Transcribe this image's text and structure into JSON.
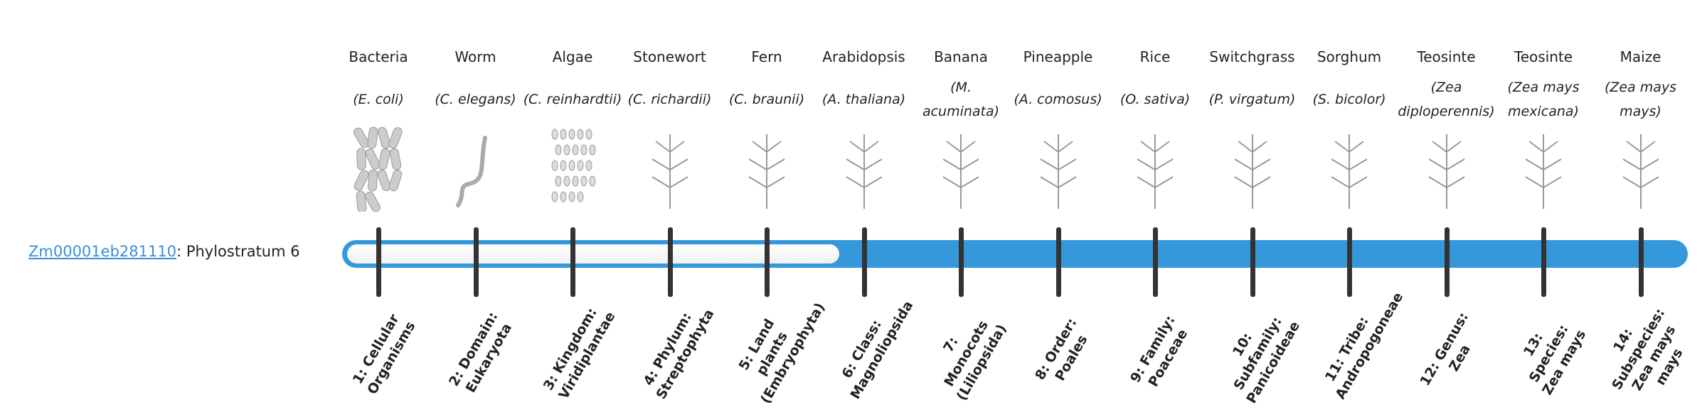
{
  "gene": {
    "id": "Zm00001eb281110",
    "suffix": ": Phylostratum 6",
    "phylostratum": 6,
    "total_strata": 14
  },
  "colors": {
    "bar": "#3498db",
    "tick": "#333333",
    "link": "#3a8fd9"
  },
  "organisms": [
    {
      "common": "Bacteria",
      "scientific": "(E. coli)",
      "icon": "bacteria-icon",
      "stratum": "1: Cellular Organisms"
    },
    {
      "common": "Worm",
      "scientific": "(C. elegans)",
      "icon": "worm-icon",
      "stratum": "2: Domain: Eukaryota"
    },
    {
      "common": "Algae",
      "scientific": "(C. reinhardtii)",
      "icon": "algae-icon",
      "stratum": "3: Kingdom: Viridiplantae"
    },
    {
      "common": "Stonewort",
      "scientific": "(C. richardii)",
      "icon": "stonewort-icon",
      "stratum": "4: Phylum: Streptophyta"
    },
    {
      "common": "Fern",
      "scientific": "(C. braunii)",
      "icon": "fern-icon",
      "stratum": "5: Land plants (Embryophyta)"
    },
    {
      "common": "Arabidopsis",
      "scientific": "(A. thaliana)",
      "icon": "arabidopsis-icon",
      "stratum": "6: Class: Magnoliopsida"
    },
    {
      "common": "Banana",
      "scientific": "(M. acuminata)",
      "icon": "banana-icon",
      "stratum": "7: Monocots (Liliopsida)"
    },
    {
      "common": "Pineapple",
      "scientific": "(A. comosus)",
      "icon": "pineapple-icon",
      "stratum": "8: Order: Poales"
    },
    {
      "common": "Rice",
      "scientific": "(O. sativa)",
      "icon": "rice-icon",
      "stratum": "9: Family: Poaceae"
    },
    {
      "common": "Switchgrass",
      "scientific": "(P. virgatum)",
      "icon": "switchgrass-icon",
      "stratum": "10: Subfamily: Panicoideae"
    },
    {
      "common": "Sorghum",
      "scientific": "(S. bicolor)",
      "icon": "sorghum-icon",
      "stratum": "11: Tribe: Andropogoneae"
    },
    {
      "common": "Teosinte",
      "scientific": "(Zea diploperennis)",
      "icon": "teosinte-icon",
      "stratum": "12: Genus: Zea"
    },
    {
      "common": "Teosinte",
      "scientific": "(Zea mays mexicana)",
      "icon": "teosinte-icon",
      "stratum": "13: Species: Zea mays"
    },
    {
      "common": "Maize",
      "scientific": "(Zea mays mays)",
      "icon": "maize-icon",
      "stratum": "14: Subspecies: Zea mays mays"
    }
  ]
}
